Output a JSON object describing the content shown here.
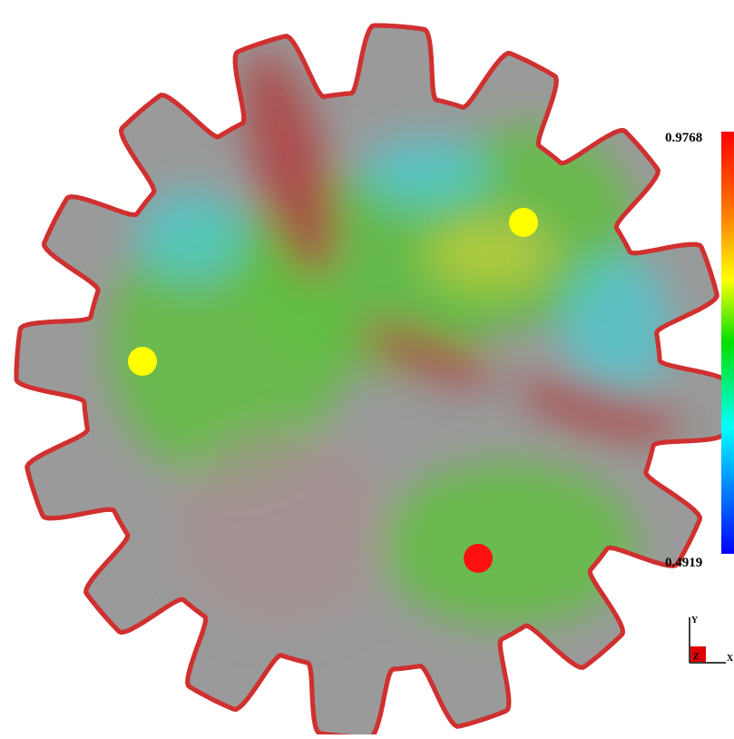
{
  "colorbar": {
    "max": 0.9768,
    "min": 0.4919
  },
  "axes": {
    "y": "Y",
    "z": "Z",
    "x": "X"
  }
}
